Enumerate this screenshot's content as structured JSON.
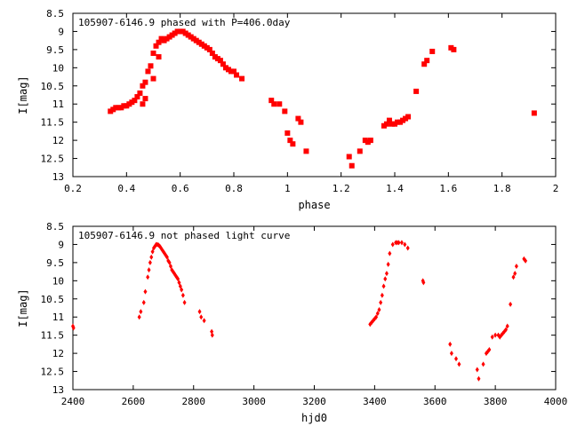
{
  "colors": {
    "points": "#ff0000",
    "axes": "#000000",
    "background": "#ffffff"
  },
  "chart_data": [
    {
      "type": "scatter",
      "title": "105907-6146.9 phased with P=406.0day",
      "xlabel": "phase",
      "ylabel": "I[mag]",
      "xlim": [
        0.2,
        2.0
      ],
      "ylim": [
        13.0,
        8.5
      ],
      "y_inverted": true,
      "xticks": [
        "0.2",
        "0.4",
        "0.6",
        "0.8",
        "1",
        "1.2",
        "1.4",
        "1.6",
        "1.8",
        "2"
      ],
      "yticks": [
        "8.5",
        "9",
        "9.5",
        "10",
        "10.5",
        "11",
        "11.5",
        "12",
        "12.5",
        "13"
      ],
      "grid": false,
      "legend": "none",
      "marker": "filled-square",
      "x": [
        0.34,
        0.35,
        0.36,
        0.37,
        0.38,
        0.39,
        0.4,
        0.41,
        0.42,
        0.43,
        0.44,
        0.45,
        0.46,
        0.46,
        0.47,
        0.47,
        0.48,
        0.49,
        0.5,
        0.5,
        0.51,
        0.52,
        0.52,
        0.53,
        0.54,
        0.55,
        0.56,
        0.57,
        0.58,
        0.59,
        0.6,
        0.61,
        0.62,
        0.63,
        0.64,
        0.65,
        0.66,
        0.67,
        0.68,
        0.69,
        0.7,
        0.71,
        0.72,
        0.73,
        0.74,
        0.75,
        0.76,
        0.77,
        0.78,
        0.79,
        0.8,
        0.81,
        0.83,
        0.94,
        0.95,
        0.97,
        0.99,
        1.0,
        1.01,
        1.02,
        1.04,
        1.05,
        1.07,
        1.23,
        1.24,
        1.27,
        1.29,
        1.3,
        1.31,
        1.36,
        1.37,
        1.38,
        1.39,
        1.4,
        1.41,
        1.42,
        1.43,
        1.44,
        1.45,
        1.48,
        1.51,
        1.52,
        1.54,
        1.61,
        1.62,
        1.92
      ],
      "y": [
        11.2,
        11.15,
        11.1,
        11.1,
        11.1,
        11.05,
        11.05,
        11.0,
        10.95,
        10.9,
        10.8,
        10.7,
        10.5,
        11.0,
        10.4,
        10.85,
        10.1,
        9.95,
        9.6,
        10.3,
        9.4,
        9.3,
        9.7,
        9.2,
        9.25,
        9.2,
        9.15,
        9.1,
        9.05,
        9.0,
        9.0,
        9.0,
        9.05,
        9.1,
        9.15,
        9.2,
        9.25,
        9.3,
        9.35,
        9.4,
        9.45,
        9.5,
        9.6,
        9.7,
        9.75,
        9.8,
        9.9,
        10.0,
        10.05,
        10.1,
        10.1,
        10.2,
        10.3,
        10.9,
        11.0,
        11.0,
        11.2,
        11.8,
        12.0,
        12.1,
        11.4,
        11.5,
        12.3,
        12.45,
        12.7,
        12.3,
        12.0,
        12.05,
        12.0,
        11.6,
        11.55,
        11.45,
        11.55,
        11.55,
        11.5,
        11.5,
        11.45,
        11.4,
        11.35,
        10.65,
        9.9,
        9.8,
        9.55,
        9.45,
        9.5,
        11.25
      ]
    },
    {
      "type": "scatter",
      "title": "105907-6146.9 not phased light curve",
      "xlabel": "hjd0",
      "ylabel": "I[mag]",
      "xlim": [
        2400,
        4000
      ],
      "ylim": [
        13.0,
        8.5
      ],
      "y_inverted": true,
      "xticks": [
        "2400",
        "2600",
        "2800",
        "3000",
        "3200",
        "3400",
        "3600",
        "3800",
        "4000"
      ],
      "yticks": [
        "8.5",
        "9",
        "9.5",
        "10",
        "10.5",
        "11",
        "11.5",
        "12",
        "12.5",
        "13"
      ],
      "grid": false,
      "legend": "none",
      "marker": "small-diamond",
      "x": [
        2400,
        2402,
        2620,
        2625,
        2635,
        2640,
        2648,
        2652,
        2656,
        2660,
        2664,
        2668,
        2672,
        2676,
        2680,
        2684,
        2688,
        2692,
        2696,
        2700,
        2704,
        2708,
        2712,
        2716,
        2720,
        2724,
        2728,
        2732,
        2736,
        2740,
        2744,
        2748,
        2752,
        2756,
        2760,
        2765,
        2770,
        2820,
        2825,
        2835,
        2860,
        2862,
        3385,
        3390,
        3395,
        3400,
        3405,
        3410,
        3415,
        3420,
        3425,
        3430,
        3435,
        3440,
        3445,
        3450,
        3460,
        3470,
        3475,
        3480,
        3490,
        3500,
        3510,
        3560,
        3562,
        3650,
        3655,
        3670,
        3680,
        3740,
        3745,
        3760,
        3770,
        3775,
        3780,
        3790,
        3800,
        3810,
        3815,
        3820,
        3825,
        3830,
        3835,
        3840,
        3850,
        3860,
        3865,
        3870,
        3895,
        3900
      ],
      "y": [
        11.25,
        11.3,
        11.0,
        10.85,
        10.6,
        10.3,
        9.9,
        9.7,
        9.5,
        9.35,
        9.2,
        9.1,
        9.05,
        9.0,
        9.0,
        9.02,
        9.05,
        9.1,
        9.15,
        9.2,
        9.25,
        9.3,
        9.35,
        9.45,
        9.5,
        9.6,
        9.7,
        9.75,
        9.8,
        9.85,
        9.9,
        9.95,
        10.05,
        10.15,
        10.25,
        10.4,
        10.6,
        10.85,
        11.0,
        11.1,
        11.4,
        11.5,
        11.2,
        11.15,
        11.1,
        11.05,
        11.0,
        10.9,
        10.8,
        10.6,
        10.4,
        10.15,
        9.95,
        9.8,
        9.55,
        9.25,
        9.0,
        8.95,
        8.95,
        8.95,
        8.95,
        9.0,
        9.1,
        10.0,
        10.05,
        11.75,
        12.0,
        12.15,
        12.3,
        12.45,
        12.7,
        12.3,
        12.0,
        11.95,
        11.9,
        11.55,
        11.5,
        11.5,
        11.55,
        11.5,
        11.45,
        11.4,
        11.35,
        11.25,
        10.65,
        9.9,
        9.8,
        9.6,
        9.4,
        9.45
      ]
    }
  ]
}
